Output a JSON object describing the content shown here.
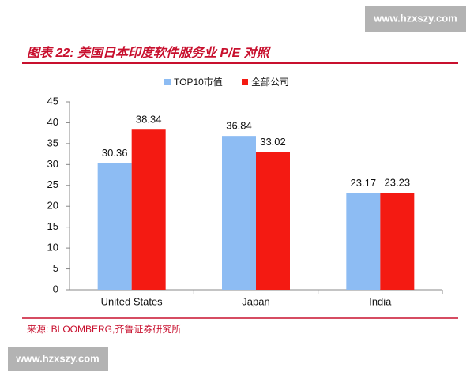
{
  "chart_data": {
    "type": "bar",
    "title": "图表 22: 美国日本印度软件服务业 P/E 对照",
    "source": "来源: BLOOMBERG,齐鲁证券研究所",
    "watermarks": [
      "www.hzxszy.com",
      "www.hzxszy.com"
    ],
    "categories": [
      "United States",
      "Japan",
      "India"
    ],
    "series": [
      {
        "name": "TOP10市值",
        "color": "#8dbcf3",
        "values": [
          30.36,
          36.84,
          23.17
        ]
      },
      {
        "name": "全部公司",
        "color": "#f41a12",
        "values": [
          38.34,
          33.02,
          23.23
        ]
      }
    ],
    "ylim": [
      0,
      45
    ],
    "yticks": [
      0,
      5,
      10,
      15,
      20,
      25,
      30,
      35,
      40,
      45
    ],
    "legend": "top"
  }
}
